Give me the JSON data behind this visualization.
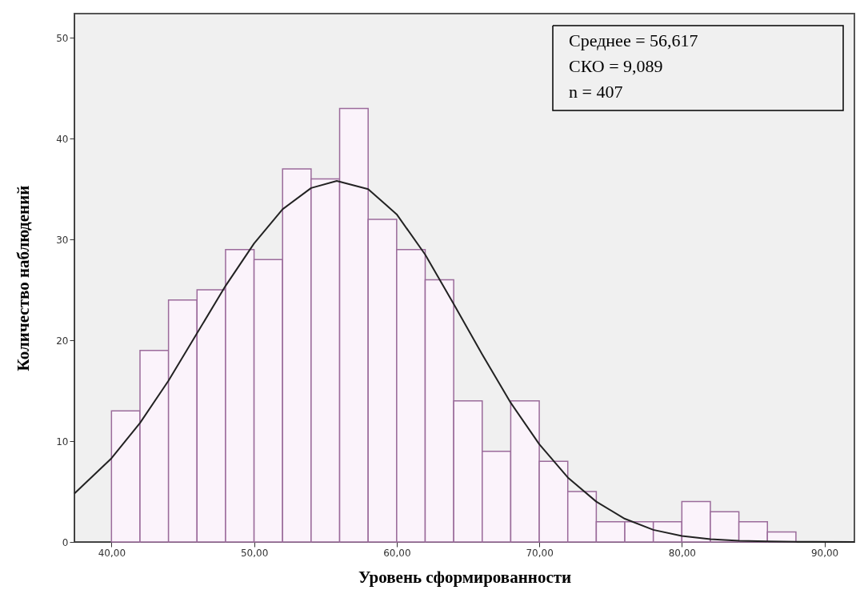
{
  "chart_data": {
    "type": "histogram",
    "xlabel": "Уровень сформированности",
    "ylabel": "Количество наблюдений",
    "bins": [
      40,
      42,
      44,
      46,
      48,
      50,
      52,
      54,
      56,
      58,
      60,
      62,
      64,
      66,
      68,
      70,
      72,
      74,
      76,
      78,
      80,
      82,
      84,
      86,
      88
    ],
    "values": [
      13,
      19,
      24,
      25,
      29,
      28,
      37,
      36,
      43,
      32,
      29,
      26,
      14,
      9,
      14,
      8,
      5,
      2,
      2,
      2,
      4,
      3,
      2,
      1
    ],
    "color": "#9b6b9b",
    "xlim": [
      37.4,
      92.1
    ],
    "xticks": [
      {
        "value": 40,
        "label": "40,00"
      },
      {
        "value": 50,
        "label": "50,00"
      },
      {
        "value": 60,
        "label": "60,00"
      },
      {
        "value": 70,
        "label": "70,00"
      },
      {
        "value": 80,
        "label": "80,00"
      },
      {
        "value": 90,
        "label": "90,00"
      }
    ],
    "ylim": [
      0,
      52.4
    ],
    "yticks": [
      0,
      10,
      20,
      30,
      40,
      50
    ],
    "grid": false,
    "annotations": [
      "Среднее = 56,617",
      "СКО = 9,089",
      "n = 407"
    ],
    "series": [
      {
        "type": "line",
        "color": "#222222",
        "x": [
          37.4,
          40,
          42,
          44,
          46,
          48,
          50,
          52,
          54,
          55.8,
          58,
          60,
          62,
          64,
          66,
          68,
          70,
          72,
          74,
          76,
          78,
          80,
          82,
          84,
          86,
          88,
          92.1
        ],
        "values": [
          4.8,
          8.3,
          11.8,
          16,
          20.7,
          25.4,
          29.6,
          33,
          35.1,
          35.8,
          35,
          32.5,
          28.5,
          23.6,
          18.6,
          13.8,
          9.7,
          6.4,
          4,
          2.3,
          1.2,
          0.6,
          0.28,
          0.12,
          0.05,
          0.02,
          0
        ]
      }
    ]
  }
}
